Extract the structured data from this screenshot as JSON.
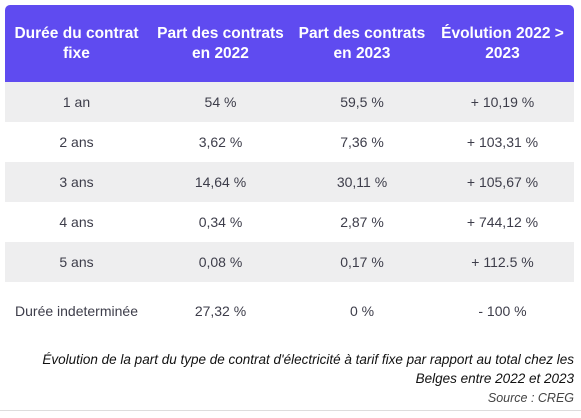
{
  "table": {
    "headers": [
      "Durée du contrat fixe",
      "Part des contrats en 2022",
      "Part des contrats en 2023",
      "Évolution 2022 > 2023"
    ],
    "rows": [
      [
        "1 an",
        "54 %",
        "59,5 %",
        "+ 10,19 %"
      ],
      [
        "2 ans",
        "3,62 %",
        "7,36 %",
        "+ 103,31 %"
      ],
      [
        "3 ans",
        "14,64 %",
        "30,11 %",
        "+ 105,67 %"
      ],
      [
        "4 ans",
        "0,34 %",
        "2,87 %",
        "+ 744,12 %"
      ],
      [
        "5 ans",
        "0,08 %",
        "0,17 %",
        "+ 112.5 %"
      ],
      [
        "Durée indeterminée",
        "27,32 %",
        "0 %",
        "- 100 %"
      ]
    ]
  },
  "caption": "Évolution de la part du type de contrat d'électricité à tarif fixe par rapport au total chez les Belges entre 2022 et 2023",
  "source": "Source : CREG",
  "colors": {
    "header_bg": "#5f4bf0",
    "header_text": "#ffffff",
    "row_shade": "#eeeeef",
    "body_text": "#3d3d4a"
  }
}
